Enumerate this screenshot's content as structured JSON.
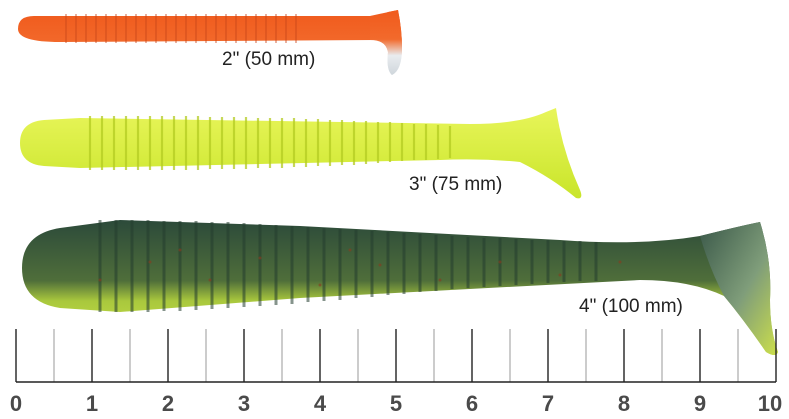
{
  "lures": [
    {
      "size_label": "2\" (50 mm)",
      "body_color": "#ef5a1e",
      "belly_color": "#ffffff",
      "tail_color": "#ef5a1e"
    },
    {
      "size_label": "3\" (75 mm)",
      "body_color": "#d6ef3a",
      "belly_color": "#e4f560",
      "tail_color": "#d6ef3a"
    },
    {
      "size_label": "4\" (100 mm)",
      "body_color": "#2f4f3a",
      "belly_color": "#cde04a",
      "tail_color": "#3b5a44"
    }
  ],
  "ruler": {
    "numbers": [
      "0",
      "1",
      "2",
      "3",
      "4",
      "5",
      "6",
      "7",
      "8",
      "9",
      "10"
    ],
    "unit": "cm"
  }
}
